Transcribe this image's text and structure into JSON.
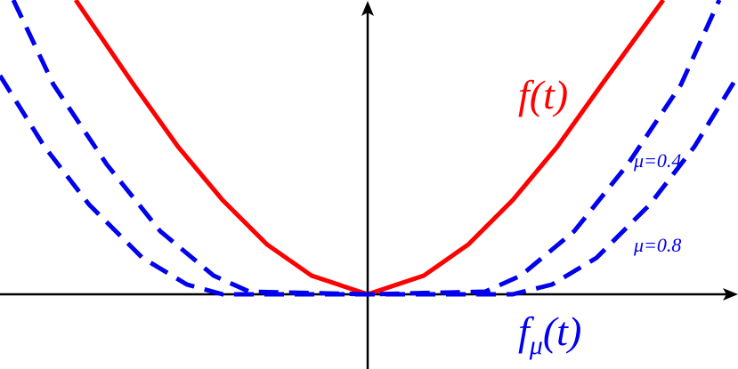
{
  "chart_data": {
    "type": "line",
    "xlim": [
      -4.13,
      4.16
    ],
    "ylim": [
      -0.84,
      3.31
    ],
    "series": [
      {
        "name": "f(t)",
        "color": "#ff0000",
        "dashed": false,
        "x": [
          -3.28,
          -2.63,
          -2.13,
          -1.63,
          -1.13,
          -0.63,
          0,
          0.63,
          1.13,
          1.63,
          2.13,
          2.63,
          3.32
        ],
        "values": [
          3.31,
          2.36,
          1.66,
          1.06,
          0.56,
          0.21,
          0,
          0.21,
          0.56,
          1.06,
          1.66,
          2.36,
          3.31
        ]
      },
      {
        "name": "μ=0.4",
        "color": "#0000ee",
        "dashed": true,
        "x": [
          -3.98,
          -3.53,
          -2.93,
          -2.33,
          -1.73,
          -1.33,
          0,
          1.32,
          1.72,
          2.32,
          2.92,
          3.52,
          3.95
        ],
        "values": [
          3.31,
          2.36,
          1.46,
          0.71,
          0.21,
          0.03,
          0,
          0.03,
          0.21,
          0.71,
          1.46,
          2.36,
          3.31
        ]
      },
      {
        "name": "μ=0.8",
        "color": "#0000ee",
        "dashed": true,
        "x": [
          -4.13,
          -3.63,
          -3.13,
          -2.53,
          -2.03,
          -1.63,
          0,
          1.63,
          2.07,
          2.57,
          3.17,
          3.67,
          4.16
        ],
        "values": [
          2.46,
          1.66,
          1.01,
          0.41,
          0.11,
          0,
          0,
          0,
          0.11,
          0.41,
          1.01,
          1.66,
          2.46
        ]
      }
    ],
    "annotation": {
      "base": "f",
      "sub": "μ",
      "arg": "(t)"
    }
  }
}
